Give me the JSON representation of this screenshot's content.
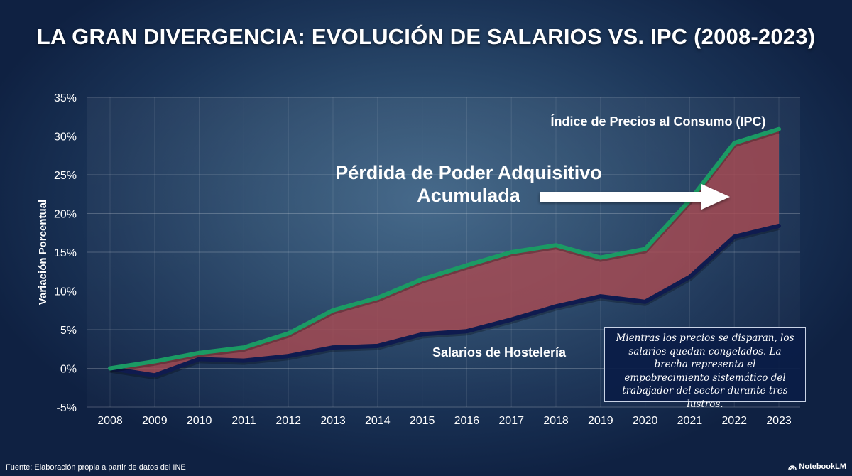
{
  "title": "LA GRAN DIVERGENCIA: EVOLUCIÓN DE SALARIOS VS. IPC (2008-2023)",
  "chart_data": {
    "type": "line",
    "title": "LA GRAN DIVERGENCIA: EVOLUCIÓN DE SALARIOS VS. IPC (2008-2023)",
    "xlabel": "",
    "ylabel": "Variación Porcentual",
    "x": [
      "2008",
      "2009",
      "2010",
      "2011",
      "2012",
      "2013",
      "2014",
      "2015",
      "2016",
      "2017",
      "2018",
      "2019",
      "2020",
      "2021",
      "2022",
      "2023"
    ],
    "y_ticks": [
      "35%",
      "30%",
      "25%",
      "20%",
      "15%",
      "10%",
      "5%",
      "0%",
      "-5%"
    ],
    "ylim": [
      -5,
      35
    ],
    "grid": true,
    "series": [
      {
        "name": "Índice de Precios al Consumo (IPC)",
        "color": "#1b9a64",
        "values": [
          0,
          0.9,
          2.0,
          2.7,
          4.5,
          7.5,
          9.1,
          11.5,
          13.3,
          15.0,
          15.9,
          14.3,
          15.4,
          21.7,
          29.1,
          30.9
        ]
      },
      {
        "name": "Salarios de Hostelería",
        "color": "#0f1b4f",
        "values": [
          0,
          -0.9,
          1.2,
          1.0,
          1.6,
          2.7,
          2.9,
          4.4,
          4.8,
          6.3,
          8.0,
          9.3,
          8.6,
          11.8,
          17.0,
          18.4
        ]
      }
    ],
    "gap_fill_color": "#a84a52",
    "annotations": {
      "gap_label": [
        "Pérdida de Poder Adquisitivo",
        "Acumulada"
      ],
      "ipc_label": "Índice de Precios al Consumo (IPC)",
      "wage_label": "Salarios de Hostelería"
    }
  },
  "note": "Mientras los precios se disparan, los salarios quedan congelados. La brecha representa el empobrecimiento sistemático del trabajador del sector durante tres lustros.",
  "footer": {
    "source": "Fuente: Elaboración propia a partir de datos del INE",
    "brand": "NotebookLM"
  }
}
